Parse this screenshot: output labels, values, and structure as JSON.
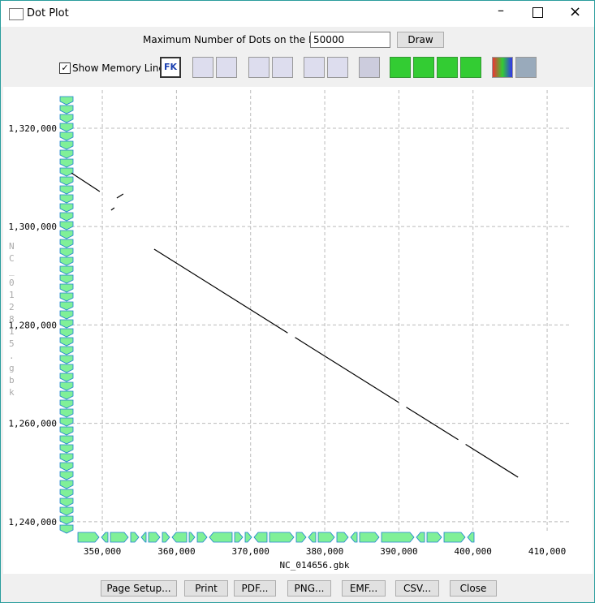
{
  "window": {
    "title": "Dot Plot"
  },
  "toolbar": {
    "max_dots_label": "Maximum Number of Dots on the Plot:",
    "max_dots_value": "50000",
    "draw_button": "Draw",
    "memory_line_label": "Show Memory Line.",
    "fk_icon": "FK"
  },
  "buttons": [
    "Page Setup...",
    "Print",
    "PDF...",
    "PNG...",
    "EMF...",
    "CSV...",
    "Close"
  ],
  "chart_data": {
    "type": "line",
    "x_label": "NC_014656.gbk",
    "y_label": "NC_012815.gbk",
    "x": [
      345830,
      349650,
      null,
      351190,
      351620,
      null,
      351950,
      352830,
      null,
      356990,
      375000,
      null,
      376000,
      390000,
      null,
      391000,
      398000,
      null,
      399000,
      406070
    ],
    "series": [
      {
        "color": "#000000",
        "values": [
          1310900,
          1307130,
          null,
          1303330,
          1303830,
          null,
          1305810,
          1306630,
          null,
          1295410,
          1278390,
          null,
          1277450,
          1264220,
          null,
          1263280,
          1256660,
          null,
          1255720,
          1249040
        ]
      }
    ],
    "xlim": [
      344300,
      412950
    ],
    "ylim": [
      1237000,
      1327750
    ],
    "xticks": [
      {
        "value": 350000,
        "label": "350,000"
      },
      {
        "value": 360000,
        "label": "360,000"
      },
      {
        "value": 370000,
        "label": "370,000"
      },
      {
        "value": 380000,
        "label": "380,000"
      },
      {
        "value": 390000,
        "label": "390,000"
      },
      {
        "value": 400000,
        "label": "400,000"
      },
      {
        "value": 410000,
        "label": "410,000"
      }
    ],
    "yticks": [
      {
        "value": 1240000,
        "label": "1,240,000"
      },
      {
        "value": 1260000,
        "label": "1,260,000"
      },
      {
        "value": 1280000,
        "label": "1,280,000"
      },
      {
        "value": 1300000,
        "label": "1,300,000"
      },
      {
        "value": 1320000,
        "label": "1,320,000"
      }
    ],
    "grid": true
  }
}
